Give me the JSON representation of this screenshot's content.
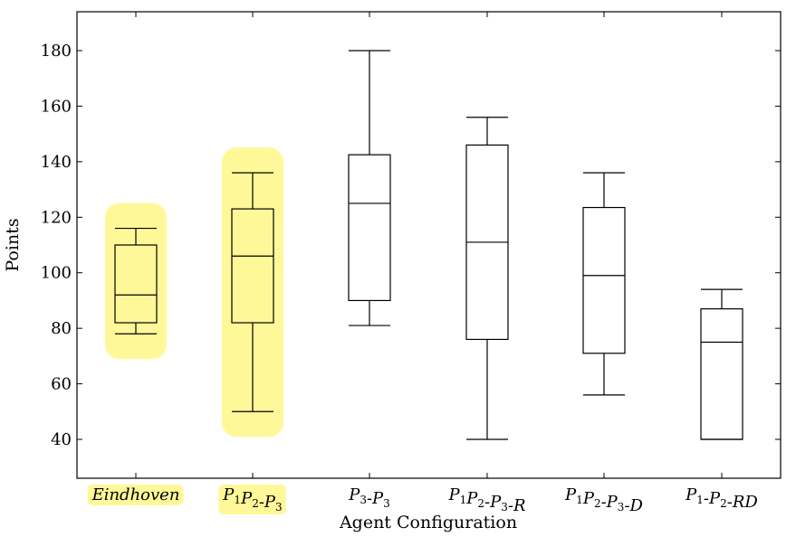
{
  "chart_data": {
    "type": "box",
    "xlabel": "Agent Configuration",
    "ylabel": "Points",
    "ylim": [
      26,
      194
    ],
    "yticks": [
      40,
      60,
      80,
      100,
      120,
      140,
      160,
      180
    ],
    "grid": false,
    "highlight_color": "#fff899",
    "categories": [
      {
        "label": "Eindhoven",
        "min": 78,
        "q1": 82,
        "median": 92,
        "q3": 110,
        "max": 116,
        "highlighted": true
      },
      {
        "label": "P1P2-P3",
        "min": 50,
        "q1": 82,
        "median": 106,
        "q3": 123,
        "max": 136,
        "highlighted": true
      },
      {
        "label": "P3-P3",
        "min": 81,
        "q1": 90,
        "median": 125,
        "q3": 142.5,
        "max": 180,
        "highlighted": false
      },
      {
        "label": "P1P2-P3-R",
        "min": 40,
        "q1": 76,
        "median": 111,
        "q3": 146,
        "max": 156,
        "highlighted": false
      },
      {
        "label": "P1P2-P3-D",
        "min": 56,
        "q1": 71,
        "median": 99,
        "q3": 123.5,
        "max": 136,
        "highlighted": false
      },
      {
        "label": "P1-P2-RD",
        "min": 40,
        "q1": 40,
        "median": 75,
        "q3": 87,
        "max": 94,
        "highlighted": false
      }
    ]
  }
}
